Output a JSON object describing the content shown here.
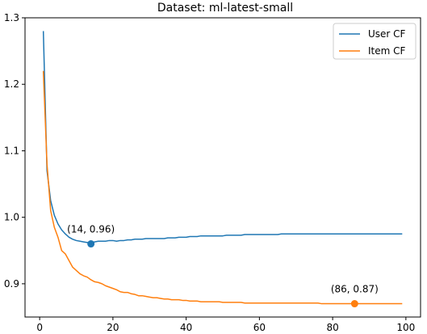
{
  "chart_data": {
    "type": "line",
    "title": "Dataset: ml-latest-small",
    "xlabel": "",
    "ylabel": "",
    "xlim": [
      -4,
      104
    ],
    "ylim": [
      0.85,
      1.3
    ],
    "xticks": [
      0,
      20,
      40,
      60,
      80,
      100
    ],
    "yticks": [
      0.9,
      1.0,
      1.1,
      1.2,
      1.3
    ],
    "xtick_labels": [
      "0",
      "20",
      "40",
      "60",
      "80",
      "100"
    ],
    "ytick_labels": [
      "0.9",
      "1.0",
      "1.1",
      "1.2",
      "1.3"
    ],
    "grid": false,
    "legend_position": "top-right",
    "series": [
      {
        "name": "User CF",
        "color": "#1f77b4",
        "x": [
          1,
          2,
          3,
          4,
          5,
          6,
          7,
          8,
          9,
          10,
          11,
          12,
          13,
          14,
          15,
          16,
          17,
          18,
          19,
          20,
          21,
          22,
          23,
          24,
          25,
          26,
          27,
          28,
          29,
          30,
          31,
          32,
          33,
          34,
          35,
          36,
          37,
          38,
          39,
          40,
          41,
          42,
          43,
          44,
          45,
          46,
          47,
          48,
          49,
          50,
          51,
          52,
          53,
          54,
          55,
          56,
          57,
          58,
          59,
          60,
          61,
          62,
          63,
          64,
          65,
          66,
          67,
          68,
          69,
          70,
          71,
          72,
          73,
          74,
          75,
          76,
          77,
          78,
          79,
          80,
          81,
          82,
          83,
          84,
          85,
          86,
          87,
          88,
          89,
          90,
          91,
          92,
          93,
          94,
          95,
          96,
          97,
          98,
          99
        ],
        "values": [
          1.28,
          1.07,
          1.025,
          1.003,
          0.99,
          0.981,
          0.975,
          0.97,
          0.967,
          0.965,
          0.964,
          0.963,
          0.962,
          0.962,
          0.963,
          0.964,
          0.964,
          0.964,
          0.965,
          0.965,
          0.964,
          0.965,
          0.965,
          0.966,
          0.966,
          0.967,
          0.967,
          0.967,
          0.968,
          0.968,
          0.968,
          0.968,
          0.968,
          0.968,
          0.969,
          0.969,
          0.969,
          0.97,
          0.97,
          0.97,
          0.971,
          0.971,
          0.971,
          0.972,
          0.972,
          0.972,
          0.972,
          0.972,
          0.972,
          0.972,
          0.973,
          0.973,
          0.973,
          0.973,
          0.973,
          0.974,
          0.974,
          0.974,
          0.974,
          0.974,
          0.974,
          0.974,
          0.974,
          0.974,
          0.974,
          0.975,
          0.975,
          0.975,
          0.975,
          0.975,
          0.975,
          0.975,
          0.975,
          0.975,
          0.975,
          0.975,
          0.975,
          0.975,
          0.975,
          0.975,
          0.975,
          0.975,
          0.975,
          0.975,
          0.975,
          0.975,
          0.975,
          0.975,
          0.975,
          0.975,
          0.975,
          0.975,
          0.975,
          0.975,
          0.975,
          0.975,
          0.975,
          0.975,
          0.975
        ]
      },
      {
        "name": "Item CF",
        "color": "#ff7f0e",
        "x": [
          1,
          2,
          3,
          4,
          5,
          6,
          7,
          8,
          9,
          10,
          11,
          12,
          13,
          14,
          15,
          16,
          17,
          18,
          19,
          20,
          21,
          22,
          23,
          24,
          25,
          26,
          27,
          28,
          29,
          30,
          31,
          32,
          33,
          34,
          35,
          36,
          37,
          38,
          39,
          40,
          41,
          42,
          43,
          44,
          45,
          46,
          47,
          48,
          49,
          50,
          51,
          52,
          53,
          54,
          55,
          56,
          57,
          58,
          59,
          60,
          61,
          62,
          63,
          64,
          65,
          66,
          67,
          68,
          69,
          70,
          71,
          72,
          73,
          74,
          75,
          76,
          77,
          78,
          79,
          80,
          81,
          82,
          83,
          84,
          85,
          86,
          87,
          88,
          89,
          90,
          91,
          92,
          93,
          94,
          95,
          96,
          97,
          98,
          99
        ],
        "values": [
          1.22,
          1.08,
          1.01,
          0.985,
          0.97,
          0.95,
          0.945,
          0.935,
          0.925,
          0.92,
          0.915,
          0.912,
          0.91,
          0.906,
          0.903,
          0.902,
          0.9,
          0.897,
          0.895,
          0.893,
          0.891,
          0.888,
          0.887,
          0.887,
          0.885,
          0.884,
          0.882,
          0.882,
          0.881,
          0.88,
          0.879,
          0.879,
          0.878,
          0.877,
          0.877,
          0.876,
          0.876,
          0.876,
          0.875,
          0.875,
          0.874,
          0.874,
          0.874,
          0.873,
          0.873,
          0.873,
          0.873,
          0.873,
          0.873,
          0.872,
          0.872,
          0.872,
          0.872,
          0.872,
          0.872,
          0.871,
          0.871,
          0.871,
          0.871,
          0.871,
          0.871,
          0.871,
          0.871,
          0.871,
          0.871,
          0.871,
          0.871,
          0.871,
          0.871,
          0.871,
          0.871,
          0.871,
          0.871,
          0.871,
          0.871,
          0.871,
          0.87,
          0.87,
          0.87,
          0.87,
          0.87,
          0.87,
          0.87,
          0.87,
          0.87,
          0.869,
          0.87,
          0.87,
          0.87,
          0.87,
          0.87,
          0.87,
          0.87,
          0.87,
          0.87,
          0.87,
          0.87,
          0.87,
          0.87
        ]
      }
    ],
    "annotations": [
      {
        "series": 0,
        "x": 14,
        "y": 0.96,
        "text": "(14, 0.96)"
      },
      {
        "series": 1,
        "x": 86,
        "y": 0.87,
        "text": "(86, 0.87)"
      }
    ]
  }
}
